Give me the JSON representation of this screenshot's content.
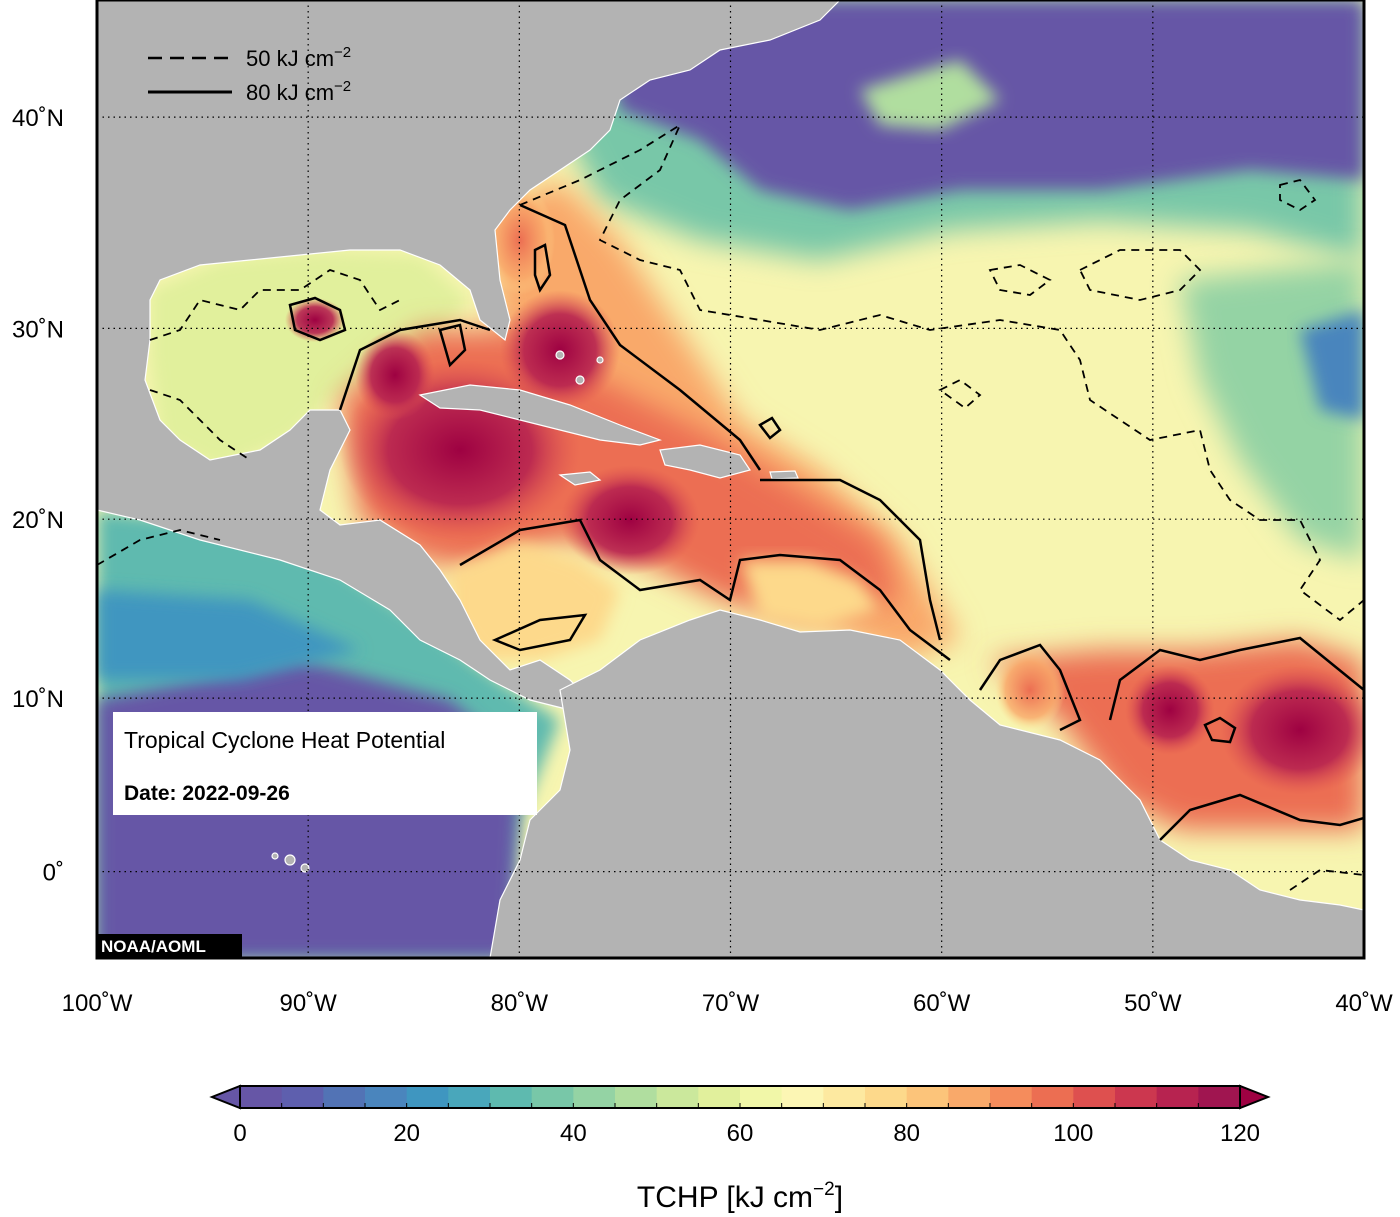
{
  "map": {
    "title": "Tropical Cyclone Heat Potential",
    "date": "Date: 2022-09-26",
    "credit": "NOAA/AOML",
    "extent": {
      "lon": [
        -100,
        -40
      ],
      "lat": [
        -5,
        45
      ]
    },
    "lat_ticks": [
      {
        "value": 40,
        "label": "40˚N"
      },
      {
        "value": 30,
        "label": "30˚N"
      },
      {
        "value": 20,
        "label": "20˚N"
      },
      {
        "value": 10,
        "label": "10˚N"
      },
      {
        "value": 0,
        "label": "0˚"
      }
    ],
    "lon_ticks": [
      {
        "value": -100,
        "label": "100˚W"
      },
      {
        "value": -90,
        "label": "90˚W"
      },
      {
        "value": -80,
        "label": "80˚W"
      },
      {
        "value": -70,
        "label": "70˚W"
      },
      {
        "value": -60,
        "label": "60˚W"
      },
      {
        "value": -50,
        "label": "50˚W"
      },
      {
        "value": -40,
        "label": "40˚W"
      }
    ],
    "land_color": "#b3b3b3",
    "legend": [
      {
        "style": "dashed",
        "label": "50 kJ cm",
        "sup": "−2"
      },
      {
        "style": "solid",
        "label": "80 kJ cm",
        "sup": "−2"
      }
    ]
  },
  "colorbar": {
    "label": "TCHP [kJ cm",
    "label_sup": "−2",
    "label_end": "]",
    "min": 0,
    "max": 120,
    "step": 5,
    "ticks": [
      "0",
      "20",
      "40",
      "60",
      "80",
      "100",
      "120"
    ],
    "colors": [
      "#6656a6",
      "#5e5fae",
      "#5273b5",
      "#4a85bd",
      "#3f96c0",
      "#49a7bb",
      "#5ebaaf",
      "#78c7a8",
      "#94d3a4",
      "#b0de9f",
      "#cbe89c",
      "#e1f09c",
      "#f1f7a8",
      "#fcf6b4",
      "#fde9a0",
      "#fdd98b",
      "#fcc47a",
      "#f9a96a",
      "#f58c5c",
      "#ec6e52",
      "#de504f",
      "#cc374f",
      "#b72350",
      "#a01550"
    ],
    "under_color": "#6656a6",
    "over_color": "#9e0142"
  }
}
